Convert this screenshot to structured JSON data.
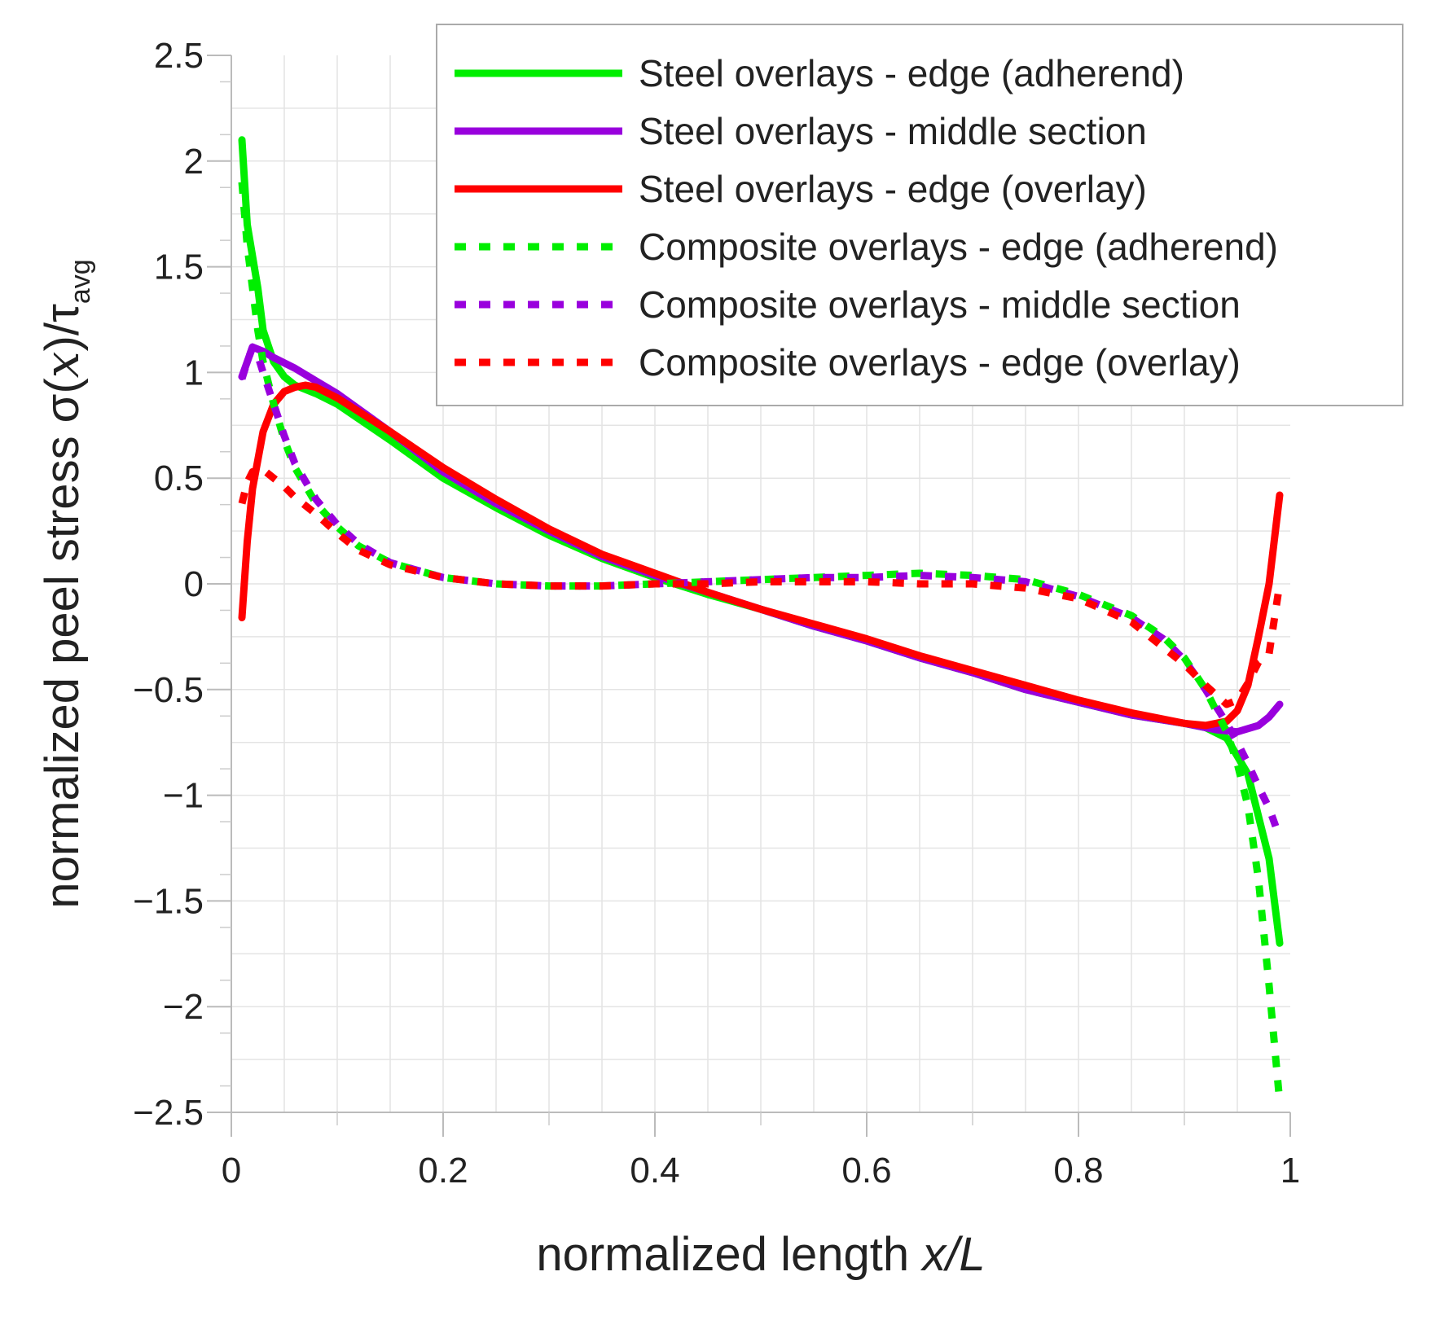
{
  "chart_data": {
    "type": "line",
    "xlabel_prefix": "normalized length ",
    "xlabel_var": "x/L",
    "ylabel_main": "normalized peel stress σ(",
    "ylabel_var": "x",
    "ylabel_close": ")/τ",
    "ylabel_sub": "avg",
    "xlim": [
      0,
      1
    ],
    "ylim": [
      -2.5,
      2.5
    ],
    "x_ticks": [
      0,
      0.2,
      0.4,
      0.6,
      0.8,
      1
    ],
    "x_tick_labels": [
      "0",
      "0.2",
      "0.4",
      "0.6",
      "0.8",
      "1"
    ],
    "y_ticks": [
      2.5,
      2,
      1.5,
      1,
      0.5,
      0,
      -0.5,
      -1,
      -1.5,
      -2,
      -2.5
    ],
    "y_tick_labels": [
      "2.5",
      "2",
      "1.5",
      "1",
      "0.5",
      "0",
      "−0.5",
      "−1",
      "−1.5",
      "−2",
      "−2.5"
    ],
    "grid": true,
    "legend_position": "top-right",
    "series": [
      {
        "name": "Steel overlays - edge (adherend)",
        "color": "#00ee00",
        "dash": "solid",
        "x": [
          0.01,
          0.015,
          0.02,
          0.025,
          0.03,
          0.04,
          0.05,
          0.06,
          0.08,
          0.1,
          0.15,
          0.2,
          0.25,
          0.3,
          0.35,
          0.4,
          0.45,
          0.5,
          0.55,
          0.6,
          0.65,
          0.7,
          0.75,
          0.8,
          0.85,
          0.9,
          0.92,
          0.94,
          0.96,
          0.97,
          0.98,
          0.99
        ],
        "y": [
          2.1,
          1.7,
          1.55,
          1.4,
          1.2,
          1.05,
          0.98,
          0.94,
          0.9,
          0.85,
          0.68,
          0.5,
          0.36,
          0.23,
          0.12,
          0.03,
          -0.05,
          -0.12,
          -0.2,
          -0.27,
          -0.35,
          -0.42,
          -0.5,
          -0.56,
          -0.62,
          -0.66,
          -0.68,
          -0.73,
          -0.9,
          -1.1,
          -1.3,
          -1.7
        ]
      },
      {
        "name": "Steel overlays - middle section",
        "color": "#9900dd",
        "dash": "solid",
        "x": [
          0.01,
          0.015,
          0.02,
          0.03,
          0.04,
          0.06,
          0.08,
          0.1,
          0.15,
          0.2,
          0.25,
          0.3,
          0.35,
          0.4,
          0.45,
          0.5,
          0.55,
          0.6,
          0.65,
          0.7,
          0.75,
          0.8,
          0.85,
          0.9,
          0.93,
          0.95,
          0.97,
          0.98,
          0.99
        ],
        "y": [
          0.98,
          1.05,
          1.12,
          1.1,
          1.07,
          1.02,
          0.96,
          0.9,
          0.72,
          0.53,
          0.38,
          0.25,
          0.13,
          0.04,
          -0.04,
          -0.12,
          -0.2,
          -0.27,
          -0.35,
          -0.42,
          -0.5,
          -0.56,
          -0.62,
          -0.66,
          -0.69,
          -0.7,
          -0.67,
          -0.63,
          -0.57
        ]
      },
      {
        "name": "Steel overlays - edge (overlay)",
        "color": "#ff0000",
        "dash": "solid",
        "x": [
          0.01,
          0.015,
          0.02,
          0.03,
          0.04,
          0.05,
          0.06,
          0.07,
          0.08,
          0.1,
          0.15,
          0.2,
          0.25,
          0.3,
          0.35,
          0.4,
          0.45,
          0.5,
          0.55,
          0.6,
          0.65,
          0.7,
          0.75,
          0.8,
          0.85,
          0.9,
          0.92,
          0.94,
          0.95,
          0.96,
          0.97,
          0.98,
          0.99
        ],
        "y": [
          -0.16,
          0.2,
          0.45,
          0.72,
          0.85,
          0.91,
          0.93,
          0.94,
          0.93,
          0.88,
          0.72,
          0.55,
          0.4,
          0.26,
          0.14,
          0.05,
          -0.04,
          -0.12,
          -0.19,
          -0.26,
          -0.34,
          -0.41,
          -0.48,
          -0.55,
          -0.61,
          -0.66,
          -0.67,
          -0.65,
          -0.6,
          -0.48,
          -0.25,
          0.0,
          0.42
        ]
      },
      {
        "name": "Composite overlays - edge (adherend)",
        "color": "#00ee00",
        "dash": "dashed",
        "x": [
          0.01,
          0.015,
          0.02,
          0.025,
          0.03,
          0.04,
          0.05,
          0.06,
          0.08,
          0.1,
          0.12,
          0.15,
          0.2,
          0.25,
          0.3,
          0.35,
          0.4,
          0.45,
          0.5,
          0.55,
          0.6,
          0.65,
          0.7,
          0.75,
          0.8,
          0.85,
          0.88,
          0.9,
          0.92,
          0.94,
          0.95,
          0.96,
          0.97,
          0.98,
          0.99
        ],
        "y": [
          1.9,
          1.6,
          1.4,
          1.2,
          1.05,
          0.85,
          0.68,
          0.55,
          0.38,
          0.27,
          0.18,
          0.1,
          0.03,
          0.0,
          -0.01,
          -0.01,
          0.0,
          0.01,
          0.02,
          0.03,
          0.04,
          0.05,
          0.04,
          0.02,
          -0.05,
          -0.15,
          -0.25,
          -0.35,
          -0.5,
          -0.7,
          -0.85,
          -1.05,
          -1.4,
          -1.9,
          -2.45
        ]
      },
      {
        "name": "Composite overlays - middle section",
        "color": "#9900dd",
        "dash": "dashed",
        "x": [
          0.01,
          0.015,
          0.02,
          0.025,
          0.03,
          0.04,
          0.05,
          0.06,
          0.08,
          0.1,
          0.12,
          0.15,
          0.2,
          0.25,
          0.3,
          0.35,
          0.4,
          0.45,
          0.5,
          0.55,
          0.6,
          0.65,
          0.7,
          0.75,
          0.8,
          0.85,
          0.88,
          0.9,
          0.92,
          0.94,
          0.95,
          0.96,
          0.97,
          0.98,
          0.99
        ],
        "y": [
          0.97,
          1.05,
          1.12,
          1.08,
          1.0,
          0.85,
          0.7,
          0.57,
          0.4,
          0.28,
          0.19,
          0.1,
          0.03,
          0.0,
          -0.01,
          -0.01,
          0.0,
          0.01,
          0.02,
          0.03,
          0.03,
          0.04,
          0.03,
          0.01,
          -0.06,
          -0.16,
          -0.26,
          -0.36,
          -0.5,
          -0.66,
          -0.75,
          -0.85,
          -0.96,
          -1.06,
          -1.2
        ]
      },
      {
        "name": "Composite overlays - edge (overlay)",
        "color": "#ff0000",
        "dash": "dashed",
        "x": [
          0.01,
          0.015,
          0.02,
          0.03,
          0.04,
          0.05,
          0.06,
          0.08,
          0.1,
          0.12,
          0.15,
          0.2,
          0.25,
          0.3,
          0.35,
          0.4,
          0.45,
          0.5,
          0.55,
          0.6,
          0.65,
          0.7,
          0.75,
          0.8,
          0.85,
          0.88,
          0.9,
          0.92,
          0.94,
          0.95,
          0.96,
          0.97,
          0.98,
          0.99
        ],
        "y": [
          0.38,
          0.48,
          0.53,
          0.54,
          0.5,
          0.46,
          0.41,
          0.33,
          0.24,
          0.16,
          0.09,
          0.03,
          0.0,
          -0.01,
          -0.01,
          0.0,
          0.0,
          0.01,
          0.01,
          0.01,
          0.0,
          0.0,
          -0.02,
          -0.07,
          -0.18,
          -0.3,
          -0.38,
          -0.48,
          -0.57,
          -0.55,
          -0.47,
          -0.37,
          -0.33,
          0.0
        ]
      }
    ]
  }
}
